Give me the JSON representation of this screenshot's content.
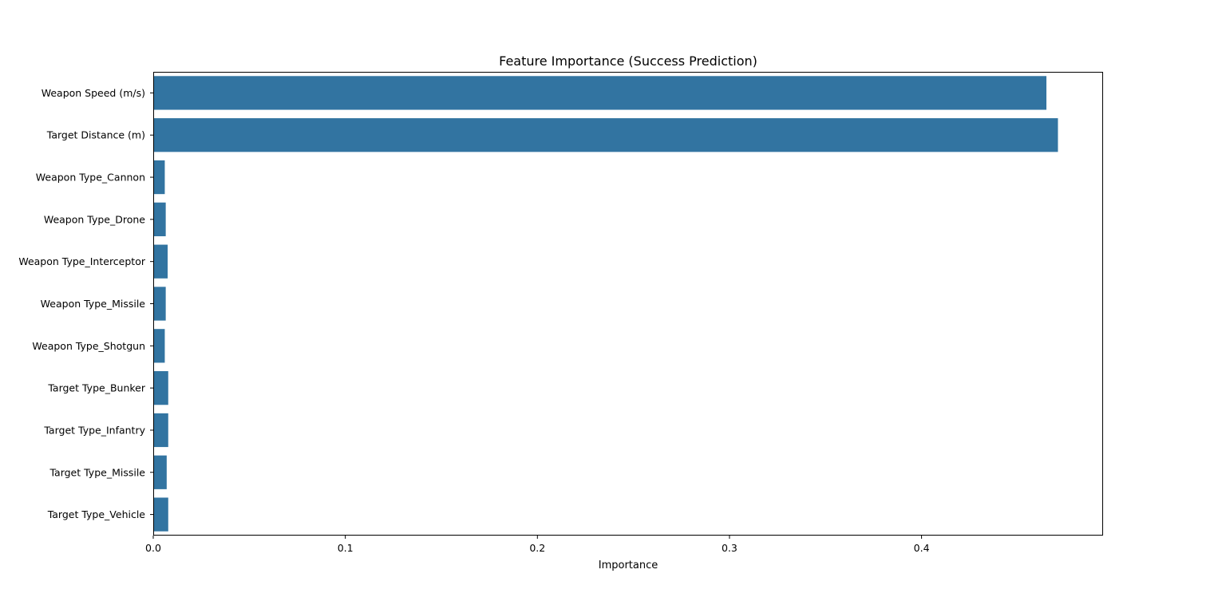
{
  "chart_data": {
    "type": "bar",
    "orientation": "horizontal",
    "title": "Feature Importance (Success Prediction)",
    "xlabel": "Importance",
    "ylabel": "",
    "xlim": [
      0,
      0.4945
    ],
    "xticks": [
      0.0,
      0.1,
      0.2,
      0.3,
      0.4
    ],
    "xtick_labels": [
      "0.0",
      "0.1",
      "0.2",
      "0.3",
      "0.4"
    ],
    "grid": false,
    "bar_color": "#3274a1",
    "categories": [
      "Weapon Speed (m/s)",
      "Target Distance (m)",
      "Weapon Type_Cannon",
      "Weapon Type_Drone",
      "Weapon Type_Interceptor",
      "Weapon Type_Missile",
      "Weapon Type_Shotgun",
      "Target Type_Bunker",
      "Target Type_Infantry",
      "Target Type_Missile",
      "Target Type_Vehicle"
    ],
    "values": [
      0.465,
      0.471,
      0.006,
      0.0065,
      0.0075,
      0.0065,
      0.006,
      0.0078,
      0.0078,
      0.007,
      0.0078
    ]
  }
}
